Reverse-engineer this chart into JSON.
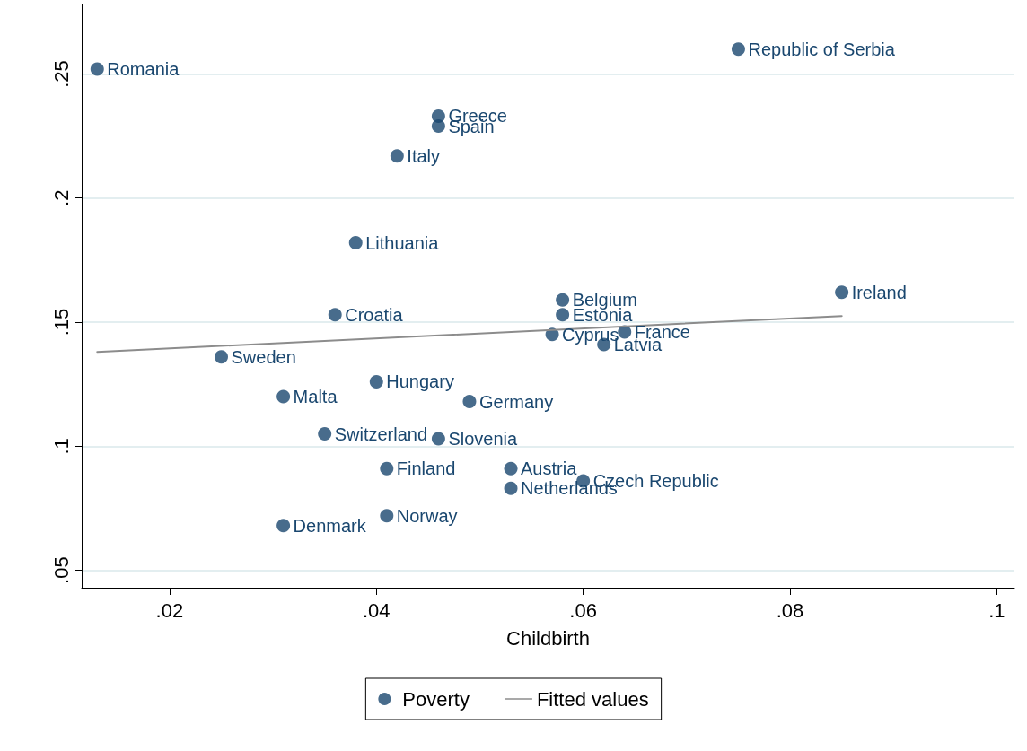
{
  "chart_data": {
    "type": "scatter",
    "xlabel": "Childbirth",
    "xlim": [
      0.0115,
      0.1017
    ],
    "ylim": [
      0.043,
      0.278
    ],
    "xticks": [
      {
        "value": 0.02,
        "label": ".02"
      },
      {
        "value": 0.04,
        "label": ".04"
      },
      {
        "value": 0.06,
        "label": ".06"
      },
      {
        "value": 0.08,
        "label": ".08"
      },
      {
        "value": 0.1,
        "label": ".1"
      }
    ],
    "yticks": [
      {
        "value": 0.05,
        "label": ".05"
      },
      {
        "value": 0.1,
        "label": ".1"
      },
      {
        "value": 0.15,
        "label": ".15"
      },
      {
        "value": 0.2,
        "label": ".2"
      },
      {
        "value": 0.25,
        "label": ".25"
      }
    ],
    "grid": "y",
    "legend": "bottom",
    "marker": "circle",
    "series": [
      {
        "name": "Poverty",
        "type": "scatter",
        "color": "#1a476f",
        "x": [
          0.013,
          0.075,
          0.046,
          0.046,
          0.042,
          0.038,
          0.036,
          0.058,
          0.058,
          0.085,
          0.057,
          0.064,
          0.062,
          0.025,
          0.04,
          0.031,
          0.049,
          0.035,
          0.046,
          0.041,
          0.053,
          0.06,
          0.053,
          0.041,
          0.031
        ],
        "values": [
          0.252,
          0.26,
          0.233,
          0.229,
          0.217,
          0.182,
          0.153,
          0.159,
          0.153,
          0.162,
          0.145,
          0.146,
          0.141,
          0.136,
          0.126,
          0.12,
          0.118,
          0.105,
          0.103,
          0.091,
          0.091,
          0.086,
          0.083,
          0.072,
          0.068
        ]
      },
      {
        "name": "Fitted values",
        "type": "line",
        "color": "#8c8c8c",
        "marker": "none",
        "line_style": "solid",
        "x": [
          0.013,
          0.085
        ],
        "values": [
          0.138,
          0.1525
        ]
      }
    ],
    "annotations": [
      {
        "text": "Romania",
        "x": 0.013,
        "y": 0.252
      },
      {
        "text": "Republic of Serbia",
        "x": 0.075,
        "y": 0.26
      },
      {
        "text": "Greece",
        "x": 0.046,
        "y": 0.233
      },
      {
        "text": "Spain",
        "x": 0.046,
        "y": 0.229
      },
      {
        "text": "Italy",
        "x": 0.042,
        "y": 0.217
      },
      {
        "text": "Lithuania",
        "x": 0.038,
        "y": 0.182
      },
      {
        "text": "Croatia",
        "x": 0.036,
        "y": 0.153
      },
      {
        "text": "Belgium",
        "x": 0.058,
        "y": 0.159
      },
      {
        "text": "Estonia",
        "x": 0.058,
        "y": 0.153
      },
      {
        "text": "Ireland",
        "x": 0.085,
        "y": 0.162
      },
      {
        "text": "Cyprus",
        "x": 0.057,
        "y": 0.145
      },
      {
        "text": "France",
        "x": 0.064,
        "y": 0.146
      },
      {
        "text": "Latvia",
        "x": 0.062,
        "y": 0.141
      },
      {
        "text": "Sweden",
        "x": 0.025,
        "y": 0.136
      },
      {
        "text": "Hungary",
        "x": 0.04,
        "y": 0.126
      },
      {
        "text": "Malta",
        "x": 0.031,
        "y": 0.12
      },
      {
        "text": "Germany",
        "x": 0.049,
        "y": 0.118
      },
      {
        "text": "Switzerland",
        "x": 0.035,
        "y": 0.105
      },
      {
        "text": "Slovenia",
        "x": 0.046,
        "y": 0.103
      },
      {
        "text": "Finland",
        "x": 0.041,
        "y": 0.091
      },
      {
        "text": "Austria",
        "x": 0.053,
        "y": 0.091
      },
      {
        "text": "Czech Republic",
        "x": 0.06,
        "y": 0.086
      },
      {
        "text": "Netherlands",
        "x": 0.053,
        "y": 0.083
      },
      {
        "text": "Norway",
        "x": 0.041,
        "y": 0.072
      },
      {
        "text": "Denmark",
        "x": 0.031,
        "y": 0.068
      }
    ]
  }
}
